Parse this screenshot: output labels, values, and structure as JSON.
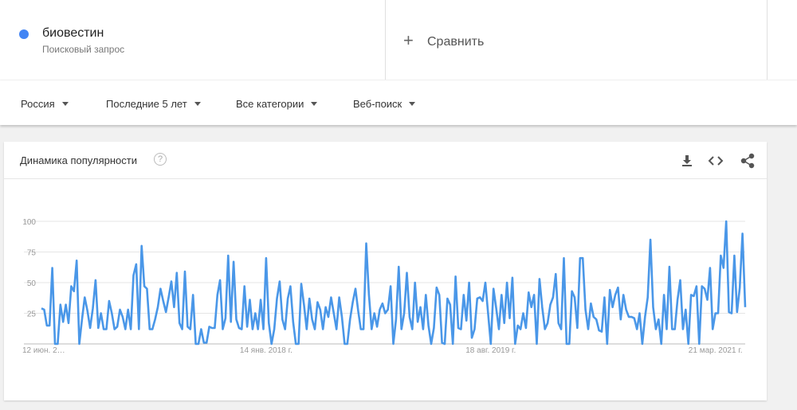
{
  "term": {
    "name": "биовестин",
    "kind": "Поисковый запрос"
  },
  "compare": "Сравнить",
  "filters": [
    "Россия",
    "Последние 5 лет",
    "Все категории",
    "Веб-поиск"
  ],
  "card_title": "Динамика популярности",
  "chart_data": {
    "type": "line",
    "color": "#4a97e8",
    "grid": true,
    "ylim": [
      0,
      100
    ],
    "yticks": [
      25,
      50,
      75,
      100
    ],
    "categories": [
      "12 июн. 2…",
      null,
      null,
      null,
      null,
      null,
      null,
      null,
      null,
      null,
      null,
      null,
      null,
      null,
      null,
      null,
      null,
      null,
      null,
      null,
      null,
      null,
      null,
      null,
      null,
      null,
      null,
      null,
      null,
      null,
      null,
      null,
      null,
      null,
      null,
      null,
      null,
      null,
      null,
      null,
      null,
      null,
      null,
      null,
      null,
      null,
      null,
      null,
      null,
      null,
      null,
      null,
      null,
      null,
      null,
      null,
      null,
      null,
      null,
      null,
      null,
      null,
      null,
      null,
      null,
      null,
      null,
      null,
      null,
      null,
      null,
      null,
      null,
      null,
      null,
      null,
      null,
      null,
      null,
      null,
      null,
      null,
      null,
      "14 янв. 2018 г.",
      null,
      null,
      null,
      null,
      null,
      null,
      null,
      null,
      null,
      null,
      null,
      null,
      null,
      null,
      null,
      null,
      null,
      null,
      null,
      null,
      null,
      null,
      null,
      null,
      null,
      null,
      null,
      null,
      null,
      null,
      null,
      null,
      null,
      null,
      null,
      null,
      null,
      null,
      null,
      null,
      null,
      null,
      null,
      null,
      null,
      null,
      null,
      null,
      null,
      null,
      null,
      null,
      null,
      null,
      null,
      null,
      null,
      null,
      null,
      null,
      null,
      null,
      null,
      null,
      null,
      null,
      null,
      null,
      null,
      null,
      null,
      null,
      null,
      null,
      null,
      null,
      null,
      null,
      null,
      null,
      null,
      null,
      "18 авг. 2019 г.",
      null,
      null,
      null,
      null,
      null,
      null,
      null,
      null,
      null,
      null,
      null,
      null,
      null,
      null,
      null,
      null,
      null,
      null,
      null,
      null,
      null,
      null,
      null,
      null,
      null,
      null,
      null,
      null,
      null,
      null,
      null,
      null,
      null,
      null,
      null,
      null,
      null,
      null,
      null,
      null,
      null,
      null,
      null,
      null,
      null,
      null,
      null,
      null,
      null,
      null,
      null,
      null,
      null,
      null,
      null,
      null,
      null,
      null,
      null,
      null,
      null,
      null,
      null,
      null,
      null,
      null,
      null,
      null,
      null,
      null,
      null,
      null,
      null,
      null,
      null,
      null,
      null,
      null,
      null,
      null,
      null,
      null,
      "21 мар. 2021 г.",
      null,
      null,
      null,
      null,
      null,
      null,
      null,
      null,
      null,
      null,
      null
    ],
    "values": [
      29,
      28,
      15,
      15,
      62,
      0,
      0,
      32,
      18,
      32,
      17,
      47,
      43,
      68,
      0,
      20,
      38,
      27,
      13,
      29,
      52,
      13,
      25,
      12,
      12,
      35,
      25,
      12,
      14,
      28,
      22,
      12,
      28,
      12,
      56,
      65,
      12,
      80,
      47,
      45,
      12,
      12,
      20,
      30,
      45,
      35,
      26,
      38,
      51,
      30,
      58,
      17,
      12,
      59,
      14,
      12,
      40,
      0,
      0,
      12,
      1,
      1,
      14,
      13,
      13,
      40,
      52,
      12,
      21,
      72,
      18,
      67,
      20,
      13,
      12,
      47,
      14,
      36,
      12,
      25,
      12,
      36,
      12,
      70,
      17,
      0,
      12,
      37,
      51,
      20,
      12,
      37,
      47,
      18,
      0,
      0,
      49,
      32,
      12,
      37,
      20,
      12,
      34,
      28,
      12,
      30,
      22,
      38,
      25,
      12,
      38,
      22,
      0,
      0,
      20,
      34,
      45,
      27,
      12,
      12,
      82,
      40,
      12,
      25,
      14,
      28,
      33,
      25,
      28,
      47,
      0,
      20,
      63,
      12,
      25,
      58,
      22,
      12,
      50,
      18,
      30,
      12,
      40,
      15,
      0,
      13,
      46,
      40,
      1,
      0,
      37,
      32,
      0,
      55,
      13,
      12,
      40,
      19,
      50,
      5,
      12,
      37,
      38,
      35,
      50,
      25,
      0,
      45,
      29,
      12,
      40,
      17,
      50,
      21,
      54,
      0,
      15,
      12,
      25,
      13,
      42,
      30,
      40,
      0,
      53,
      30,
      12,
      17,
      32,
      38,
      57,
      17,
      12,
      70,
      0,
      0,
      43,
      38,
      13,
      70,
      70,
      28,
      12,
      33,
      22,
      20,
      11,
      10,
      38,
      0,
      44,
      30,
      40,
      46,
      20,
      40,
      28,
      22,
      22,
      21,
      12,
      25,
      0,
      22,
      38,
      85,
      30,
      12,
      20,
      0,
      40,
      12,
      63,
      12,
      12,
      36,
      52,
      12,
      28,
      0,
      40,
      39,
      47,
      0,
      47,
      45,
      36,
      62,
      12,
      25,
      25,
      72,
      62,
      100,
      26,
      25,
      72,
      26,
      46,
      90,
      30
    ]
  }
}
